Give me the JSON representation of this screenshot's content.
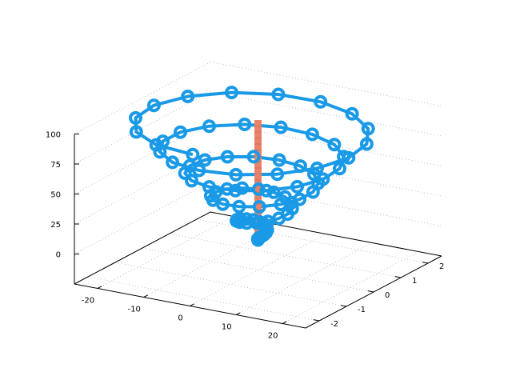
{
  "chart_data": {
    "type": "scatter3d",
    "title": "",
    "xlabel": "",
    "ylabel": "",
    "zlabel": "",
    "xlim": [
      -25,
      25
    ],
    "ylim": [
      -2.5,
      2.5
    ],
    "zlim": [
      -25,
      100
    ],
    "grid": true,
    "x_ticks": [
      "-20",
      "-10",
      "0",
      "10",
      "20"
    ],
    "y_ticks": [
      "-2",
      "-1",
      "0",
      "1",
      "2"
    ],
    "z_ticks": [
      "0",
      "25",
      "50",
      "75",
      "100"
    ],
    "colors": {
      "spiral": "#1a9ae6",
      "column": "#e8836a",
      "column_edge": "#c8644d",
      "axis": "#000000",
      "grid": "#b0b0b0"
    },
    "series": [
      {
        "style": "linespoints-circle",
        "spiral": {
          "t_start": 0,
          "t_end": 1,
          "points": 80,
          "turns": 5,
          "phase_deg": -90,
          "radius_max": 24,
          "y_scale": 0.1,
          "z_min": 0,
          "z_max": 100
        }
      },
      {
        "style": "bar-column",
        "column": {
          "x": 0,
          "y": 0,
          "z_from": 0,
          "z_to": 100,
          "segments": 20
        }
      }
    ]
  }
}
